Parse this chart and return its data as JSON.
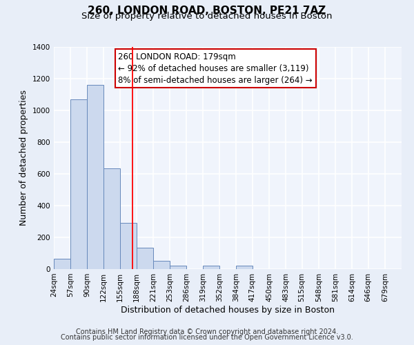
{
  "title": "260, LONDON ROAD, BOSTON, PE21 7AZ",
  "subtitle": "Size of property relative to detached houses in Boston",
  "xlabel": "Distribution of detached houses by size in Boston",
  "ylabel": "Number of detached properties",
  "footer_line1": "Contains HM Land Registry data © Crown copyright and database right 2024.",
  "footer_line2": "Contains public sector information licensed under the Open Government Licence v3.0.",
  "bin_labels": [
    "24sqm",
    "57sqm",
    "90sqm",
    "122sqm",
    "155sqm",
    "188sqm",
    "221sqm",
    "253sqm",
    "286sqm",
    "319sqm",
    "352sqm",
    "384sqm",
    "417sqm",
    "450sqm",
    "483sqm",
    "515sqm",
    "548sqm",
    "581sqm",
    "614sqm",
    "646sqm",
    "679sqm"
  ],
  "bin_edges": [
    24,
    57,
    90,
    122,
    155,
    188,
    221,
    253,
    286,
    319,
    352,
    384,
    417,
    450,
    483,
    515,
    548,
    581,
    614,
    646,
    679,
    712
  ],
  "bar_heights": [
    65,
    1070,
    1160,
    635,
    290,
    135,
    50,
    22,
    0,
    22,
    0,
    22,
    0,
    0,
    0,
    0,
    0,
    0,
    0,
    0,
    0
  ],
  "bar_color": "#ccd9ee",
  "bar_edge_color": "#6688bb",
  "property_line_x": 179,
  "property_line_color": "red",
  "annotation_text": "260 LONDON ROAD: 179sqm\n← 92% of detached houses are smaller (3,119)\n8% of semi-detached houses are larger (264) →",
  "annotation_box_color": "white",
  "annotation_box_edge_color": "#cc0000",
  "ylim": [
    0,
    1400
  ],
  "yticks": [
    0,
    200,
    400,
    600,
    800,
    1000,
    1200,
    1400
  ],
  "bg_color": "#e8eef8",
  "plot_bg_color": "#f0f4fc",
  "grid_color": "white",
  "title_fontsize": 11,
  "subtitle_fontsize": 9.5,
  "axis_label_fontsize": 9,
  "tick_fontsize": 7.5,
  "annotation_fontsize": 8.5,
  "footer_fontsize": 7
}
